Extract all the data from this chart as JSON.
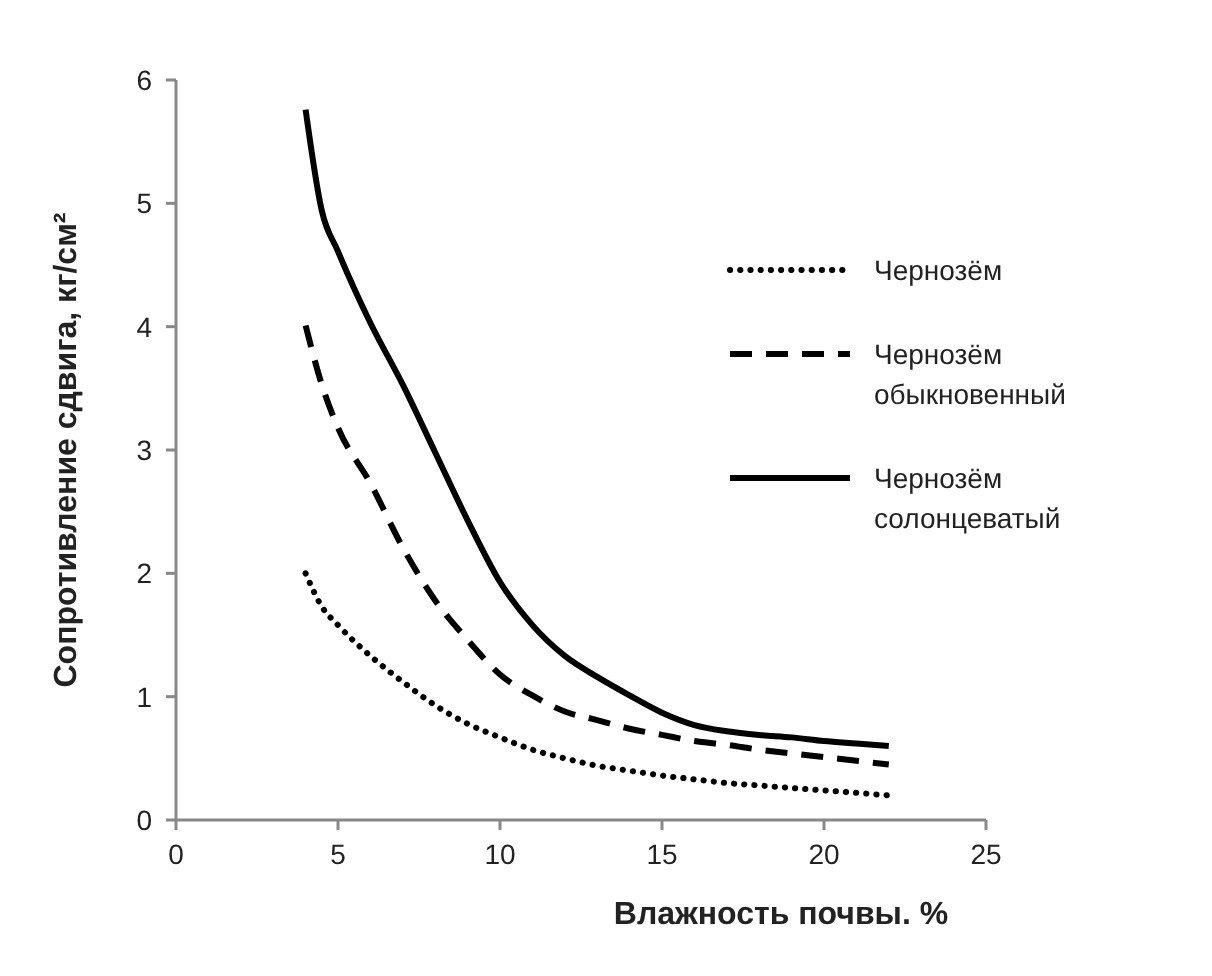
{
  "chart_data": {
    "type": "line",
    "xlabel": "Влажность почвы. %",
    "ylabel": "Сопротивление сдвига, кг/см²",
    "xlim": [
      0,
      25
    ],
    "xticks": [
      0,
      5,
      10,
      15,
      20,
      25
    ],
    "ylim": [
      0,
      6
    ],
    "yticks": [
      0,
      1,
      2,
      3,
      4,
      5,
      6
    ],
    "grid": false,
    "legend": "right",
    "x": [
      4,
      4.5,
      5,
      6,
      7,
      8,
      9,
      10,
      11,
      12,
      13,
      14,
      15,
      16,
      17,
      18,
      19,
      20,
      21,
      22
    ],
    "series": [
      {
        "name": "Чернозём",
        "color": "#000000",
        "line_style": "dotted",
        "values": [
          2.0,
          1.73,
          1.58,
          1.33,
          1.12,
          0.93,
          0.78,
          0.67,
          0.57,
          0.5,
          0.44,
          0.4,
          0.36,
          0.33,
          0.3,
          0.28,
          0.26,
          0.24,
          0.22,
          0.2
        ]
      },
      {
        "name": "Чернозём обыкновенный",
        "color": "#000000",
        "line_style": "dashed",
        "values": [
          4.01,
          3.53,
          3.18,
          2.73,
          2.21,
          1.78,
          1.46,
          1.18,
          1.01,
          0.88,
          0.81,
          0.74,
          0.69,
          0.64,
          0.61,
          0.57,
          0.54,
          0.51,
          0.48,
          0.45
        ]
      },
      {
        "name": "Чернозём солонцеватый",
        "color": "#000000",
        "line_style": "solid",
        "values": [
          5.76,
          4.94,
          4.61,
          4.03,
          3.53,
          2.98,
          2.43,
          1.93,
          1.58,
          1.33,
          1.16,
          1.01,
          0.87,
          0.77,
          0.72,
          0.69,
          0.67,
          0.64,
          0.62,
          0.6
        ]
      }
    ]
  }
}
